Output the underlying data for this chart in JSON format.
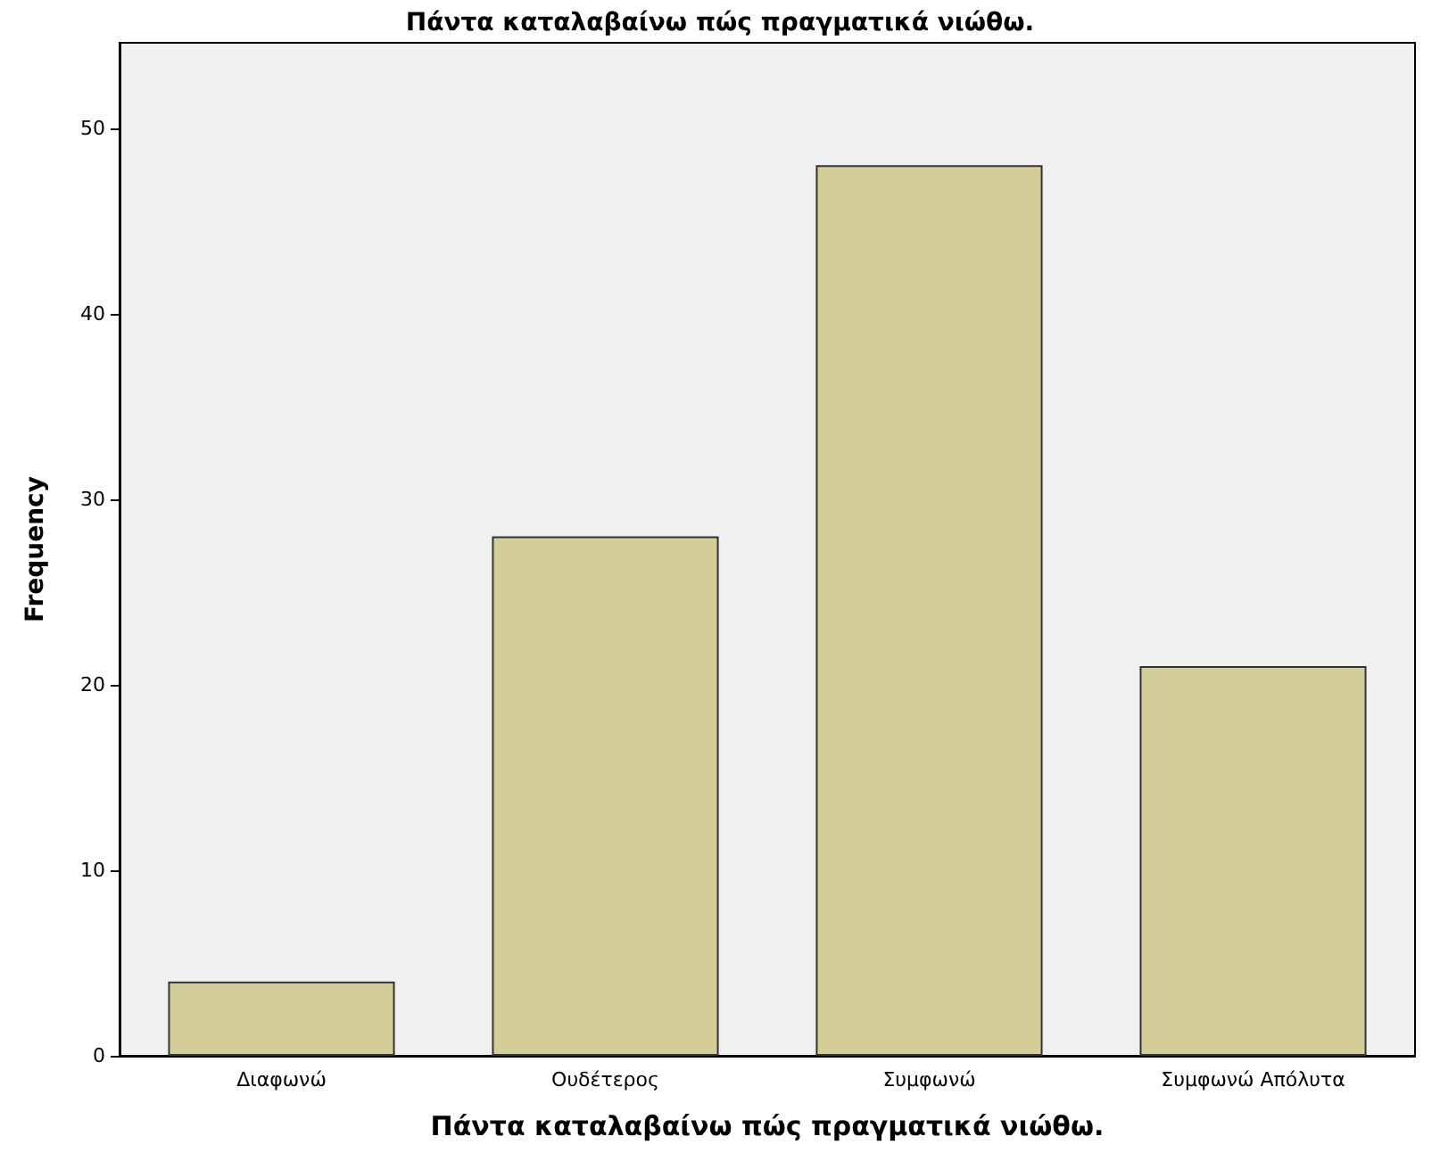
{
  "chart_data": {
    "type": "bar",
    "title": "Πάντα καταλαβαίνω πώς πραγματικά νιώθω.",
    "xlabel": "Πάντα καταλαβαίνω πώς πραγματικά νιώθω.",
    "ylabel": "Frequency",
    "categories": [
      "Διαφωνώ",
      "Ουδέτερος",
      "Συμφωνώ",
      "Συμφωνώ Απόλυτα"
    ],
    "values": [
      4,
      28,
      48,
      21
    ],
    "color": "#d3ce97",
    "ylim": [
      0,
      54.6
    ],
    "yticks": [
      0,
      10,
      20,
      30,
      40,
      50
    ],
    "grid": false
  }
}
